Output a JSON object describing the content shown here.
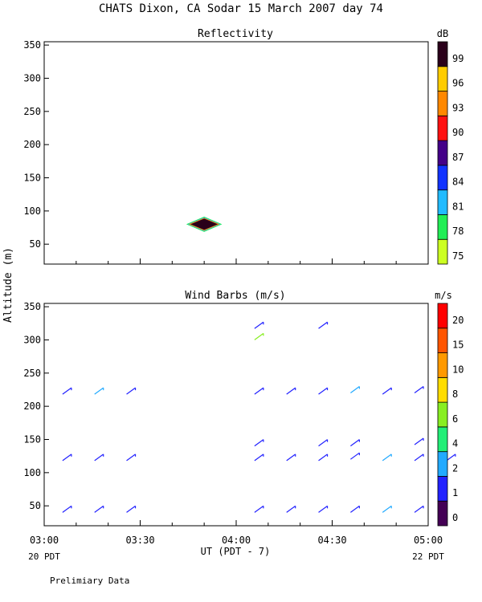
{
  "page": {
    "title": "CHATS Dixon, CA   Sodar   15 March 2007   day  74",
    "footer": "Prelimiary Data"
  },
  "colors": {
    "axis": "#000000",
    "background": "#ffffff"
  },
  "chart_data": [
    {
      "type": "heatmap",
      "title": "Reflectivity",
      "ylabel": "Altitude (m)",
      "ylim": [
        20,
        355
      ],
      "yticks": [
        50,
        100,
        150,
        200,
        250,
        300,
        350
      ],
      "xlim": [
        "03:00",
        "05:00"
      ],
      "colorbar": {
        "unit": "dB",
        "labels": [
          "75",
          "78",
          "81",
          "84",
          "87",
          "90",
          "93",
          "96",
          "99"
        ],
        "colors": [
          "#ccff22",
          "#22ee55",
          "#22bbff",
          "#1133ff",
          "#440088",
          "#ff1111",
          "#ff8800",
          "#ffcc00",
          "#2a001a"
        ]
      },
      "features": [
        {
          "label": "echo",
          "time": "03:50",
          "altitude": 80,
          "value_db": 99
        }
      ]
    },
    {
      "type": "scatter",
      "title": "Wind Barbs (m/s)",
      "ylabel": "Altitude (m)",
      "xlabel": "UT  (PDT - 7)",
      "ylim": [
        20,
        355
      ],
      "yticks": [
        50,
        100,
        150,
        200,
        250,
        300,
        350
      ],
      "xlim": [
        "03:00",
        "05:00"
      ],
      "xticks": [
        "03:00",
        "03:30",
        "04:00",
        "04:30",
        "05:00"
      ],
      "xticks_sub": [
        {
          "at": "03:00",
          "text": "20 PDT"
        },
        {
          "at": "05:00",
          "text": "22 PDT"
        }
      ],
      "colorbar": {
        "unit": "m/s",
        "labels": [
          "0",
          "1",
          "2",
          "4",
          "6",
          "8",
          "10",
          "15",
          "20"
        ],
        "colors": [
          "#440055",
          "#2222ff",
          "#22aaff",
          "#22ee77",
          "#88ee22",
          "#ffdd00",
          "#ff9900",
          "#ff5500",
          "#ff0000"
        ]
      },
      "barbs": [
        {
          "time": "03:07",
          "altitude": 45,
          "speed_class": "1"
        },
        {
          "time": "03:17",
          "altitude": 45,
          "speed_class": "1"
        },
        {
          "time": "03:27",
          "altitude": 45,
          "speed_class": "1"
        },
        {
          "time": "03:07",
          "altitude": 123,
          "speed_class": "1"
        },
        {
          "time": "03:17",
          "altitude": 123,
          "speed_class": "1"
        },
        {
          "time": "03:27",
          "altitude": 123,
          "speed_class": "1"
        },
        {
          "time": "03:07",
          "altitude": 223,
          "speed_class": "1"
        },
        {
          "time": "03:17",
          "altitude": 223,
          "speed_class": "2"
        },
        {
          "time": "03:27",
          "altitude": 223,
          "speed_class": "1"
        },
        {
          "time": "04:07",
          "altitude": 45,
          "speed_class": "1"
        },
        {
          "time": "04:17",
          "altitude": 45,
          "speed_class": "1"
        },
        {
          "time": "04:27",
          "altitude": 45,
          "speed_class": "1"
        },
        {
          "time": "04:37",
          "altitude": 45,
          "speed_class": "1"
        },
        {
          "time": "04:47",
          "altitude": 45,
          "speed_class": "2"
        },
        {
          "time": "04:57",
          "altitude": 45,
          "speed_class": "1"
        },
        {
          "time": "04:07",
          "altitude": 123,
          "speed_class": "1"
        },
        {
          "time": "04:17",
          "altitude": 123,
          "speed_class": "1"
        },
        {
          "time": "04:27",
          "altitude": 123,
          "speed_class": "1"
        },
        {
          "time": "04:37",
          "altitude": 125,
          "speed_class": "1"
        },
        {
          "time": "04:47",
          "altitude": 123,
          "speed_class": "2"
        },
        {
          "time": "04:57",
          "altitude": 123,
          "speed_class": "1"
        },
        {
          "time": "05:07",
          "altitude": 123,
          "speed_class": "1"
        },
        {
          "time": "04:07",
          "altitude": 145,
          "speed_class": "1"
        },
        {
          "time": "04:27",
          "altitude": 145,
          "speed_class": "1"
        },
        {
          "time": "04:37",
          "altitude": 145,
          "speed_class": "1"
        },
        {
          "time": "04:57",
          "altitude": 147,
          "speed_class": "1"
        },
        {
          "time": "04:07",
          "altitude": 223,
          "speed_class": "1"
        },
        {
          "time": "04:17",
          "altitude": 223,
          "speed_class": "1"
        },
        {
          "time": "04:27",
          "altitude": 223,
          "speed_class": "1"
        },
        {
          "time": "04:37",
          "altitude": 225,
          "speed_class": "2"
        },
        {
          "time": "04:47",
          "altitude": 223,
          "speed_class": "1"
        },
        {
          "time": "04:57",
          "altitude": 225,
          "speed_class": "1"
        },
        {
          "time": "04:07",
          "altitude": 322,
          "speed_class": "1"
        },
        {
          "time": "04:07",
          "altitude": 305,
          "speed_class": "6"
        },
        {
          "time": "04:27",
          "altitude": 322,
          "speed_class": "1"
        }
      ]
    }
  ]
}
